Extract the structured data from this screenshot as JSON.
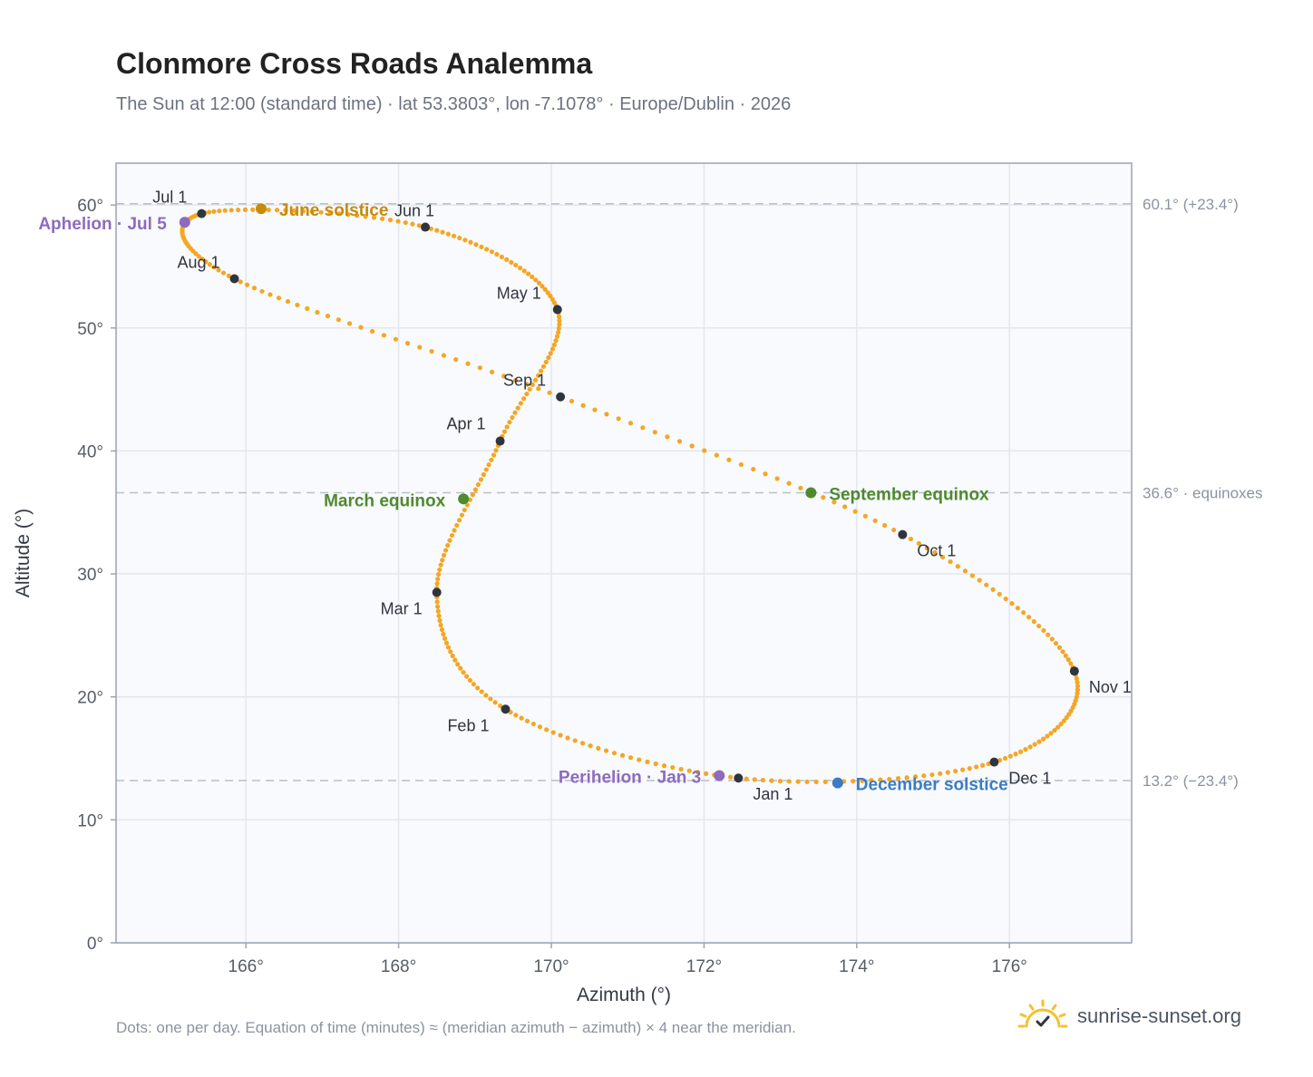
{
  "title": "Clonmore Cross Roads Analemma",
  "subtitle": "The Sun at 12:00 (standard time) · lat 53.3803°, lon -7.1078° · Europe/Dublin · 2026",
  "footnote": "Dots: one per day. Equation of time (minutes) ≈ (meridian azimuth − azimuth) × 4 near the meridian.",
  "brand": "sunrise-sunset.org",
  "chart_data": {
    "type": "scatter",
    "xlabel": "Azimuth (°)",
    "ylabel": "Altitude (°)",
    "xlim": [
      164.3,
      177.6
    ],
    "ylim": [
      0,
      63.4
    ],
    "xticks": [
      166,
      168,
      170,
      172,
      174,
      176
    ],
    "xtick_labels": [
      "166°",
      "168°",
      "170°",
      "172°",
      "174°",
      "176°"
    ],
    "yticks": [
      0,
      10,
      20,
      30,
      40,
      50,
      60
    ],
    "ytick_labels": [
      "0°",
      "10°",
      "20°",
      "30°",
      "40°",
      "50°",
      "60°"
    ],
    "grid": true,
    "reference_lines": [
      {
        "y": 60.1,
        "label": "60.1° (+23.4°)"
      },
      {
        "y": 36.6,
        "label": "36.6° · equinoxes"
      },
      {
        "y": 13.2,
        "label": "13.2° (−23.4°)"
      }
    ],
    "path_anchors": [
      {
        "date": "Jan 1",
        "day": 1,
        "az": 172.45,
        "alt": 13.4
      },
      {
        "date": "Feb 1",
        "day": 32,
        "az": 169.4,
        "alt": 19.0
      },
      {
        "date": "Mar 1",
        "day": 60,
        "az": 168.5,
        "alt": 28.5
      },
      {
        "date": "Apr 1",
        "day": 91,
        "az": 169.33,
        "alt": 40.8
      },
      {
        "date": "May 1",
        "day": 121,
        "az": 170.08,
        "alt": 51.5
      },
      {
        "date": "Jun 1",
        "day": 152,
        "az": 168.35,
        "alt": 58.2
      },
      {
        "date": "Jul 1",
        "day": 182,
        "az": 165.42,
        "alt": 59.3
      },
      {
        "date": "Aug 1",
        "day": 213,
        "az": 165.85,
        "alt": 54.0
      },
      {
        "date": "Sep 1",
        "day": 244,
        "az": 170.12,
        "alt": 44.4
      },
      {
        "date": "Oct 1",
        "day": 274,
        "az": 174.6,
        "alt": 33.2
      },
      {
        "date": "Nov 1",
        "day": 305,
        "az": 176.85,
        "alt": 22.1
      },
      {
        "date": "Dec 1",
        "day": 335,
        "az": 175.8,
        "alt": 14.7
      }
    ],
    "month_markers": [
      {
        "label": "Jan 1",
        "az": 172.45,
        "alt": 13.4
      },
      {
        "label": "Feb 1",
        "az": 169.4,
        "alt": 19.0
      },
      {
        "label": "Mar 1",
        "az": 168.5,
        "alt": 28.5
      },
      {
        "label": "Apr 1",
        "az": 169.33,
        "alt": 40.8
      },
      {
        "label": "May 1",
        "az": 170.08,
        "alt": 51.5
      },
      {
        "label": "Jun 1",
        "az": 168.35,
        "alt": 58.2
      },
      {
        "label": "Jul 1",
        "az": 165.42,
        "alt": 59.3
      },
      {
        "label": "Aug 1",
        "az": 165.85,
        "alt": 54.0
      },
      {
        "label": "Sep 1",
        "az": 170.12,
        "alt": 44.4
      },
      {
        "label": "Oct 1",
        "az": 174.6,
        "alt": 33.2
      },
      {
        "label": "Nov 1",
        "az": 176.85,
        "alt": 22.1
      },
      {
        "label": "Dec 1",
        "az": 175.8,
        "alt": 14.7
      }
    ],
    "events": [
      {
        "label": "June solstice",
        "az": 166.2,
        "alt": 59.7,
        "color": "#c98a0a"
      },
      {
        "label": "Aphelion · Jul 5",
        "az": 165.2,
        "alt": 58.6,
        "color": "#8e6bbf"
      },
      {
        "label": "March equinox",
        "az": 168.85,
        "alt": 36.1,
        "color": "#4f8a2e"
      },
      {
        "label": "September equinox",
        "az": 173.4,
        "alt": 36.6,
        "color": "#4f8a2e"
      },
      {
        "label": "Perihelion · Jan 3",
        "az": 172.2,
        "alt": 13.6,
        "color": "#8e6bbf"
      },
      {
        "label": "December solstice",
        "az": 173.75,
        "alt": 13.0,
        "color": "#3b7cc4"
      }
    ],
    "colors": {
      "path": "#f5a623",
      "marker": "#2f3540",
      "plot_bg": "#f8fafd",
      "plot_border": "#9aa3b2",
      "grid": "#e3e7ee",
      "ref_line": "#b7c0cc"
    }
  }
}
